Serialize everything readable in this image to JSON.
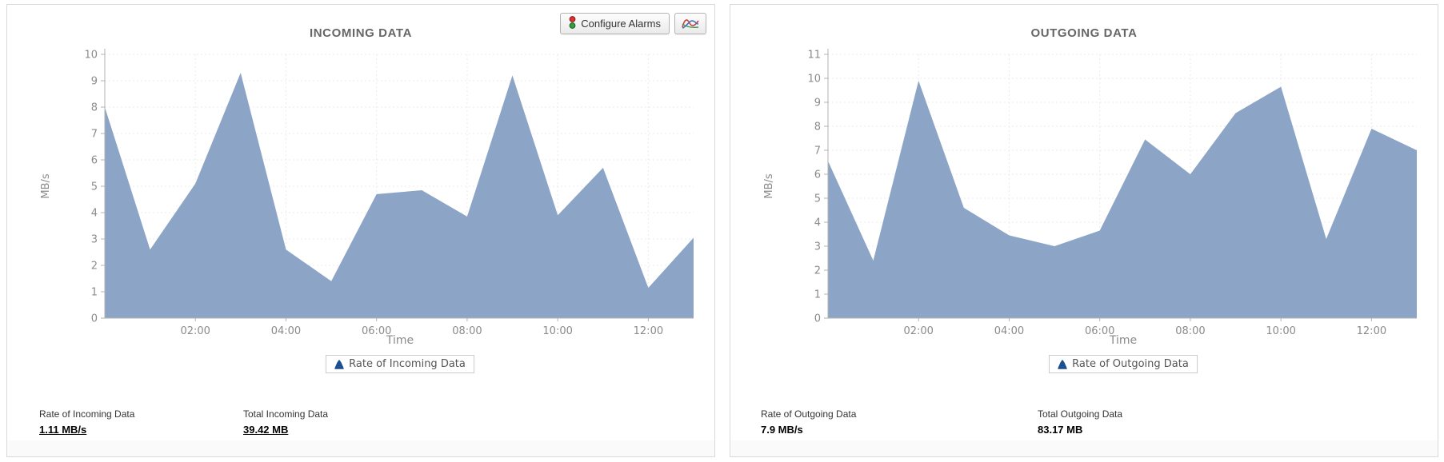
{
  "toolbar": {
    "configure_alarms": "Configure Alarms"
  },
  "colors": {
    "area_fill": "#8ca4c6",
    "legend_icon": "#1d4e8f",
    "grid_line": "#ebebeb",
    "axis_line": "#b3b3b3",
    "axis_text": "#8b8b8b",
    "title_text": "#666666",
    "panel_border": "#d9d9d9"
  },
  "panels": [
    {
      "stats": [
        {
          "label": "Rate of Incoming Data",
          "value": "1.11 MB/s"
        },
        {
          "label": "Total Incoming Data",
          "value": "39.42 MB"
        }
      ]
    },
    {
      "stats": [
        {
          "label": "Rate of Outgoing Data",
          "value": "7.9 MB/s"
        },
        {
          "label": "Total Outgoing Data",
          "value": "83.17 MB"
        }
      ]
    }
  ],
  "chart_data": [
    {
      "type": "area",
      "title": "INCOMING DATA",
      "legend_label": "Rate of Incoming Data",
      "xlabel": "Time",
      "ylabel": "MB/s",
      "ylim": [
        0,
        10
      ],
      "ytick_step": 1,
      "xlim_hours": [
        0,
        13
      ],
      "x_hours": [
        0,
        1,
        2,
        3,
        4,
        5,
        6,
        7,
        8,
        9,
        10,
        11,
        12,
        13
      ],
      "values": [
        8.0,
        2.6,
        5.1,
        9.3,
        2.6,
        1.4,
        4.7,
        4.85,
        3.85,
        9.2,
        3.9,
        5.7,
        1.15,
        3.05
      ],
      "xtick_hours": [
        2,
        4,
        6,
        8,
        10,
        12
      ],
      "xtick_labels": [
        "02:00",
        "04:00",
        "06:00",
        "08:00",
        "10:00",
        "12:00"
      ],
      "grid": true,
      "legend_position": "bottom",
      "fill_color": "#8ca4c6"
    },
    {
      "type": "area",
      "title": "OUTGOING DATA",
      "legend_label": "Rate of Outgoing Data",
      "xlabel": "Time",
      "ylabel": "MB/s",
      "ylim": [
        0,
        11
      ],
      "ytick_step": 1,
      "xlim_hours": [
        0,
        13
      ],
      "x_hours": [
        0,
        1,
        2,
        3,
        4,
        5,
        6,
        7,
        8,
        9,
        10,
        11,
        12,
        13
      ],
      "values": [
        6.55,
        2.4,
        9.9,
        4.6,
        3.45,
        3.0,
        3.65,
        7.45,
        6.0,
        8.55,
        9.65,
        3.3,
        7.9,
        7.0
      ],
      "xtick_hours": [
        2,
        4,
        6,
        8,
        10,
        12
      ],
      "xtick_labels": [
        "02:00",
        "04:00",
        "06:00",
        "08:00",
        "10:00",
        "12:00"
      ],
      "grid": true,
      "legend_position": "bottom",
      "fill_color": "#8ca4c6"
    }
  ]
}
